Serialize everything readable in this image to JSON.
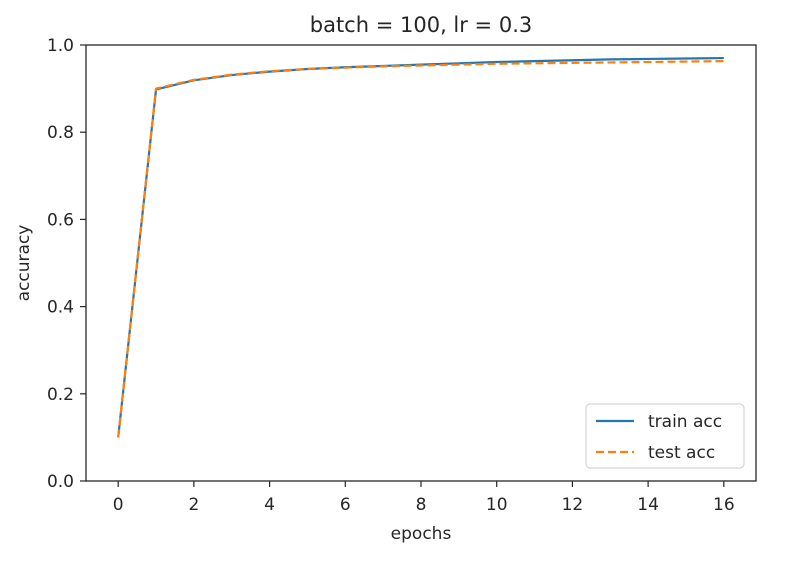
{
  "chart_data": {
    "type": "line",
    "title": "batch = 100, lr = 0.3",
    "xlabel": "epochs",
    "ylabel": "accuracy",
    "xlim": [
      -0.85,
      16.85
    ],
    "ylim": [
      0.0,
      1.0
    ],
    "xticks": [
      0,
      2,
      4,
      6,
      8,
      10,
      12,
      14,
      16
    ],
    "xtick_labels": [
      "0",
      "2",
      "4",
      "6",
      "8",
      "10",
      "12",
      "14",
      "16"
    ],
    "yticks": [
      0.0,
      0.2,
      0.4,
      0.6,
      0.8,
      1.0
    ],
    "ytick_labels": [
      "0.0",
      "0.2",
      "0.4",
      "0.6",
      "0.8",
      "1.0"
    ],
    "grid": false,
    "legend_position": "bottom-right",
    "x": [
      0,
      1,
      2,
      3,
      4,
      5,
      6,
      7,
      8,
      9,
      10,
      11,
      12,
      13,
      14,
      15,
      16
    ],
    "series": [
      {
        "name": "train acc",
        "color": "#1f77b4",
        "style": "solid",
        "values": [
          0.1,
          0.898,
          0.919,
          0.931,
          0.939,
          0.945,
          0.949,
          0.952,
          0.955,
          0.958,
          0.961,
          0.963,
          0.965,
          0.967,
          0.968,
          0.969,
          0.97
        ]
      },
      {
        "name": "test acc",
        "color": "#ff7f0e",
        "style": "dashed",
        "values": [
          0.1,
          0.9,
          0.92,
          0.932,
          0.94,
          0.945,
          0.948,
          0.951,
          0.953,
          0.955,
          0.957,
          0.958,
          0.959,
          0.96,
          0.961,
          0.962,
          0.963
        ]
      }
    ]
  }
}
